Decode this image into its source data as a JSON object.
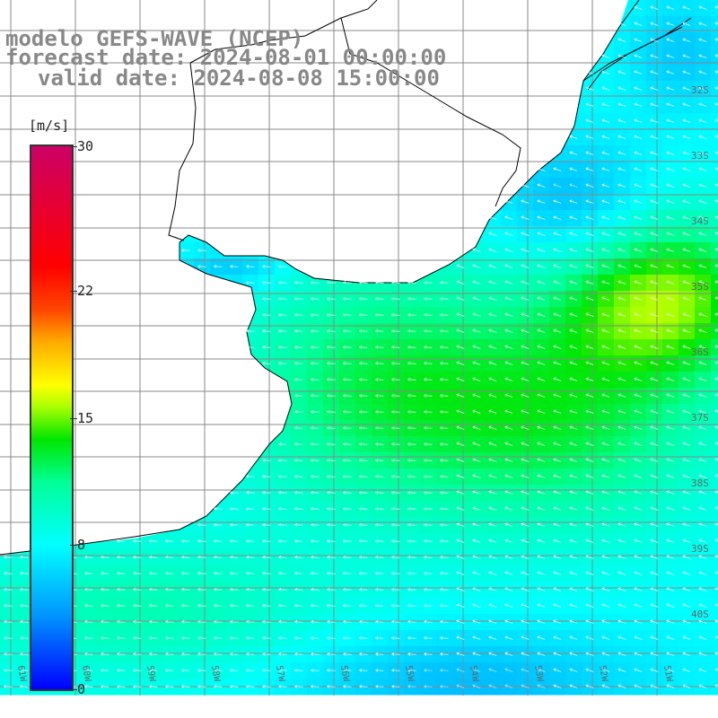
{
  "title": {
    "line1": "modelo GEFS-WAVE (NCEP)",
    "line2": "forecast date: 2024-08-01 00:00:00",
    "line3": "valid date: 2024-08-08 15:00:00"
  },
  "legend": {
    "unit": "[m/s]",
    "ticks": [
      "30",
      "22",
      "15",
      "8",
      "0"
    ],
    "tick_values": [
      30,
      22,
      15,
      8,
      0
    ],
    "range": [
      0,
      30
    ],
    "colors": [
      "#0000ff",
      "#0099ff",
      "#00ffff",
      "#00ff99",
      "#00e600",
      "#aaff00",
      "#ffff00",
      "#ffaa00",
      "#ff4400",
      "#ff0000",
      "#cc0066"
    ]
  },
  "map": {
    "lat_labels": [
      "32S",
      "33S",
      "34S",
      "35S",
      "36S",
      "37S",
      "38S",
      "39S",
      "40S"
    ],
    "lon_labels": [
      "61W",
      "60W",
      "59W",
      "58W",
      "57W",
      "56W",
      "55W",
      "54W",
      "53W",
      "52W",
      "51W"
    ],
    "land_color": "#ffffff",
    "coast_color": "#000000",
    "grid_color": "#888888",
    "arrow_color": "#ffffff",
    "wind_direction": "from east / northeast"
  }
}
